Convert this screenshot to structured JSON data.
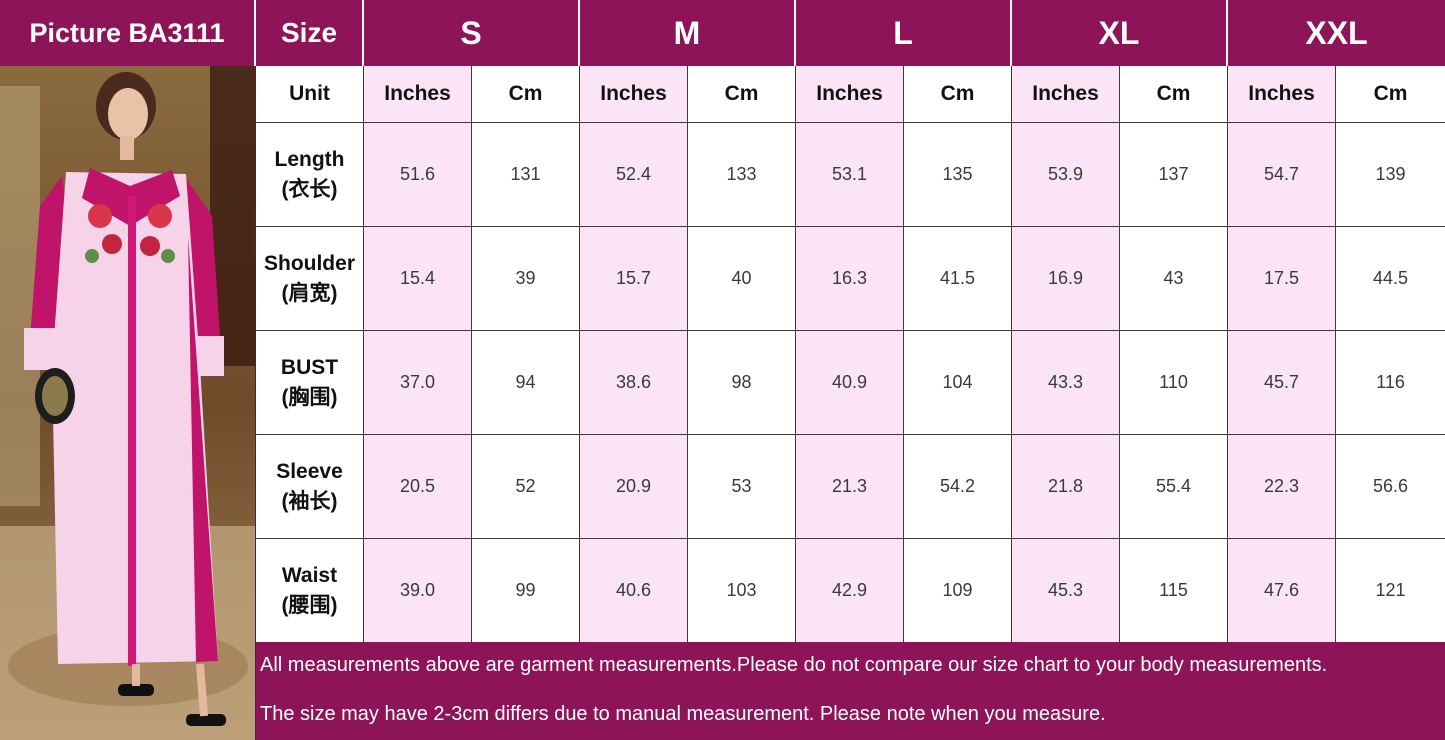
{
  "header": {
    "picture_label": "Picture  BA3111",
    "size_label": "Size",
    "sizes": [
      "S",
      "M",
      "L",
      "XL",
      "XXL"
    ]
  },
  "unit_row": {
    "label": "Unit",
    "units": [
      "Inches",
      "Cm",
      "Inches",
      "Cm",
      "Inches",
      "Cm",
      "Inches",
      "Cm",
      "Inches",
      "Cm"
    ]
  },
  "measurements": [
    {
      "name": "Length",
      "cn": "(衣长)",
      "values": [
        "51.6",
        "131",
        "52.4",
        "133",
        "53.1",
        "135",
        "53.9",
        "137",
        "54.7",
        "139"
      ]
    },
    {
      "name": "Shoulder",
      "cn": "(肩宽)",
      "values": [
        "15.4",
        "39",
        "15.7",
        "40",
        "16.3",
        "41.5",
        "16.9",
        "43",
        "17.5",
        "44.5"
      ]
    },
    {
      "name": "BUST",
      "cn": "(胸围)",
      "values": [
        "37.0",
        "94",
        "38.6",
        "98",
        "40.9",
        "104",
        "43.3",
        "110",
        "45.7",
        "116"
      ]
    },
    {
      "name": "Sleeve",
      "cn": "(袖长)",
      "values": [
        "20.5",
        "52",
        "20.9",
        "53",
        "21.3",
        "54.2",
        "21.8",
        "55.4",
        "22.3",
        "56.6"
      ]
    },
    {
      "name": "Waist",
      "cn": "(腰围)",
      "values": [
        "39.0",
        "99",
        "40.6",
        "103",
        "42.9",
        "109",
        "45.3",
        "115",
        "47.6",
        "121"
      ]
    }
  ],
  "footer": {
    "note1": "All measurements above are garment measurements.Please do not compare our size chart to your body measurements.",
    "note2": "The size may have 2-3cm differs due to manual measurement. Please note when you measure."
  },
  "colors": {
    "header_bg": "#8d1459",
    "pink_cell": "#fbe4f5",
    "white_cell": "#ffffff",
    "dress_pink": "#f6d3e8",
    "accent_magenta": "#c0136a"
  }
}
